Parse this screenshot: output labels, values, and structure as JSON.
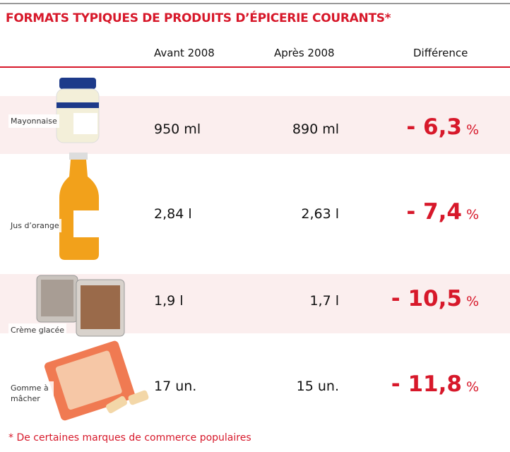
{
  "header": {
    "title": "FORMATS TYPIQUES DE PRODUITS D’ÉPICERIE COURANTS*"
  },
  "table": {
    "columns": [
      "Avant 2008",
      "Après 2008",
      "Différence"
    ],
    "rows": [
      {
        "product": "Mayonnaise",
        "before": "950 ml",
        "after": "890 ml",
        "difference": "- 6,3",
        "unit": "%"
      },
      {
        "product": "Jus d’orange",
        "before": "2,84 l",
        "after": "2,63 l",
        "difference": "- 7,4",
        "unit": "%"
      },
      {
        "product": "Crème glacée",
        "before": "1,9 l",
        "after": "1,7 l",
        "difference": "- 10,5",
        "unit": "%"
      },
      {
        "product": "Gomme à mâcher",
        "before": "17 un.",
        "after": "15 un.",
        "difference": "- 11,8",
        "unit": "%"
      }
    ]
  },
  "footnote": "* De certaines marques de commerce populaires"
}
